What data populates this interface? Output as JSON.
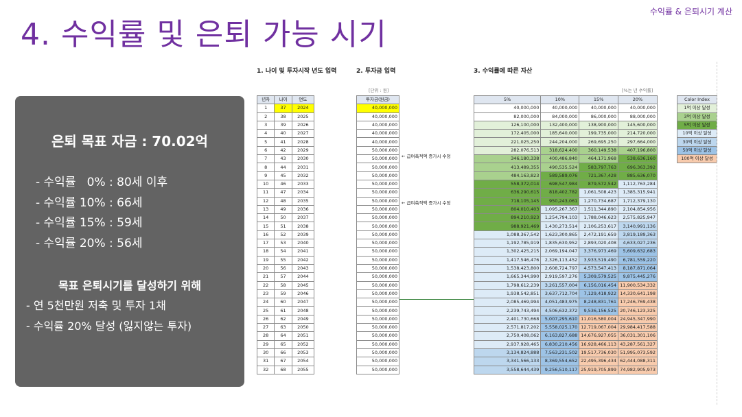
{
  "header": {
    "tagline": "수익률 & 은퇴시기 계산",
    "title": "4. 수익률 및 은퇴 가능 시기"
  },
  "summary": {
    "goal": "은퇴 목표 자금 : 70.02억",
    "rates": [
      "- 수익률   0% : 80세 이후",
      "- 수익률 10% : 66세",
      "- 수익률 15% : 59세",
      "- 수익률 20% : 56세"
    ],
    "strategy_title": "목표 은퇴시기를 달성하기 위해",
    "strategy": [
      "- 연 5천만원 저축 및 투자 1채",
      "- 수익률 20% 달성 (잃지않는 투자)"
    ]
  },
  "sheet": {
    "section1": "1. 나이 및 투자시작 년도 입력",
    "section2": "2. 투자금 입력",
    "section3": "3. 수익률에 따른 자산",
    "unit_note": "[단위 : 원]",
    "rate_note": "[%는 년 수익률]",
    "col_headers": [
      "년차",
      "나이",
      "연도"
    ],
    "invest_header": "투자금(원금)",
    "rate_headers": [
      "5%",
      "10%",
      "15%",
      "20%"
    ],
    "annotations": [
      "← 급여축적액 증가시 수정",
      "← 급여축적액 증가시 수정"
    ],
    "color_index_title": "Color Index",
    "color_index": [
      {
        "label": "1억 이상 달성",
        "color": "#e2f0d9"
      },
      {
        "label": "3억 이상 달성",
        "color": "#a9d18e"
      },
      {
        "label": "5억 이상 달성",
        "color": "#70ad47"
      },
      {
        "label": "10억 이상 달성",
        "color": "#ddebf7"
      },
      {
        "label": "30억 이상 달성",
        "color": "#bdd7ee"
      },
      {
        "label": "50억 이상 달성",
        "color": "#9dc3e6"
      },
      {
        "label": "100억 이상 달성",
        "color": "#f8cbad"
      }
    ],
    "rows": [
      [
        "1",
        "37",
        "2024",
        "40,000,000",
        "40,000,000",
        "40,000,000",
        "40,000,000",
        "40,000,000"
      ],
      [
        "2",
        "38",
        "2025",
        "40,000,000",
        "82,000,000",
        "84,000,000",
        "86,000,000",
        "88,000,000"
      ],
      [
        "3",
        "39",
        "2026",
        "40,000,000",
        "126,100,000",
        "132,400,000",
        "138,900,000",
        "145,600,000"
      ],
      [
        "4",
        "40",
        "2027",
        "40,000,000",
        "172,405,000",
        "185,640,000",
        "199,735,000",
        "214,720,000"
      ],
      [
        "5",
        "41",
        "2028",
        "40,000,000",
        "221,025,250",
        "244,204,000",
        "269,695,250",
        "297,664,000"
      ],
      [
        "6",
        "42",
        "2029",
        "50,000,000",
        "282,076,513",
        "318,624,400",
        "360,149,538",
        "407,196,800"
      ],
      [
        "7",
        "43",
        "2030",
        "50,000,000",
        "346,180,338",
        "400,486,840",
        "464,171,968",
        "538,636,160"
      ],
      [
        "8",
        "44",
        "2031",
        "50,000,000",
        "413,489,355",
        "490,535,524",
        "583,797,763",
        "696,363,392"
      ],
      [
        "9",
        "45",
        "2032",
        "50,000,000",
        "484,163,823",
        "589,589,076",
        "721,367,428",
        "885,636,070"
      ],
      [
        "10",
        "46",
        "2033",
        "50,000,000",
        "558,372,014",
        "698,547,984",
        "879,572,542",
        "1,112,763,284"
      ],
      [
        "11",
        "47",
        "2034",
        "50,000,000",
        "636,290,615",
        "818,402,782",
        "1,061,508,423",
        "1,385,315,941"
      ],
      [
        "12",
        "48",
        "2035",
        "50,000,000",
        "718,105,145",
        "950,243,061",
        "1,270,734,687",
        "1,712,379,130"
      ],
      [
        "13",
        "49",
        "2036",
        "50,000,000",
        "804,010,403",
        "1,095,267,367",
        "1,511,344,890",
        "2,104,854,956"
      ],
      [
        "14",
        "50",
        "2037",
        "50,000,000",
        "894,210,923",
        "1,254,794,103",
        "1,788,046,623",
        "2,575,825,947"
      ],
      [
        "15",
        "51",
        "2038",
        "50,000,000",
        "988,921,469",
        "1,430,273,514",
        "2,106,253,617",
        "3,140,991,136"
      ],
      [
        "16",
        "52",
        "2039",
        "50,000,000",
        "1,088,367,542",
        "1,623,300,865",
        "2,472,191,659",
        "3,819,189,363"
      ],
      [
        "17",
        "53",
        "2040",
        "50,000,000",
        "1,192,785,919",
        "1,835,630,952",
        "2,893,020,408",
        "4,633,027,236"
      ],
      [
        "18",
        "54",
        "2041",
        "50,000,000",
        "1,302,425,215",
        "2,069,194,047",
        "3,376,973,469",
        "5,609,632,683"
      ],
      [
        "19",
        "55",
        "2042",
        "50,000,000",
        "1,417,546,476",
        "2,326,113,452",
        "3,933,519,490",
        "6,781,559,220"
      ],
      [
        "20",
        "56",
        "2043",
        "50,000,000",
        "1,538,423,800",
        "2,608,724,797",
        "4,573,547,413",
        "8,187,871,064"
      ],
      [
        "21",
        "57",
        "2044",
        "50,000,000",
        "1,665,344,990",
        "2,919,597,276",
        "5,309,579,525",
        "9,875,445,276"
      ],
      [
        "22",
        "58",
        "2045",
        "50,000,000",
        "1,798,612,239",
        "3,261,557,004",
        "6,156,016,454",
        "11,900,534,332"
      ],
      [
        "23",
        "59",
        "2046",
        "50,000,000",
        "1,938,542,851",
        "3,637,712,704",
        "7,129,418,922",
        "14,330,641,198"
      ],
      [
        "24",
        "60",
        "2047",
        "50,000,000",
        "2,085,469,994",
        "4,051,483,975",
        "8,248,831,761",
        "17,246,769,438"
      ],
      [
        "25",
        "61",
        "2048",
        "50,000,000",
        "2,239,743,494",
        "4,506,632,372",
        "9,536,156,525",
        "20,746,123,325"
      ],
      [
        "26",
        "62",
        "2049",
        "50,000,000",
        "2,401,730,668",
        "5,007,295,610",
        "11,016,580,004",
        "24,945,347,990"
      ],
      [
        "27",
        "63",
        "2050",
        "50,000,000",
        "2,571,817,202",
        "5,558,025,170",
        "12,719,067,004",
        "29,984,417,588"
      ],
      [
        "28",
        "64",
        "2051",
        "50,000,000",
        "2,750,408,062",
        "6,163,827,688",
        "14,676,927,055",
        "36,031,301,106"
      ],
      [
        "29",
        "65",
        "2052",
        "50,000,000",
        "2,937,928,465",
        "6,830,210,456",
        "16,928,466,113",
        "43,287,561,327"
      ],
      [
        "30",
        "66",
        "2053",
        "50,000,000",
        "3,134,824,888",
        "7,563,231,502",
        "19,517,736,030",
        "51,995,073,592"
      ],
      [
        "31",
        "67",
        "2054",
        "50,000,000",
        "3,341,566,133",
        "8,369,554,652",
        "22,495,396,434",
        "62,444,088,311"
      ],
      [
        "32",
        "68",
        "2055",
        "50,000,000",
        "3,558,644,439",
        "9,256,510,117",
        "25,919,705,899",
        "74,982,905,973"
      ]
    ]
  }
}
